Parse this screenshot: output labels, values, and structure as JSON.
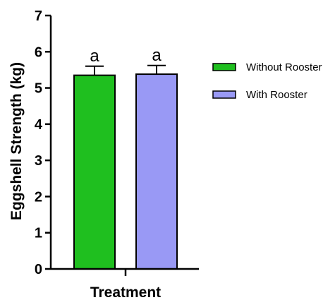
{
  "chart_data": {
    "type": "bar",
    "xlabel": "Treatment",
    "ylabel": "Eggshell Strength (kg)",
    "ylim": [
      0,
      7
    ],
    "yticks": [
      "0",
      "1",
      "2",
      "3",
      "4",
      "5",
      "6",
      "7"
    ],
    "grid": false,
    "legend_position": "right",
    "series": [
      {
        "name": "Without Rooster",
        "value": 5.35,
        "error": 0.25,
        "significance": "a",
        "color": "#1fbf1f"
      },
      {
        "name": "With Rooster",
        "value": 5.38,
        "error": 0.24,
        "significance": "a",
        "color": "#9999f5"
      }
    ]
  }
}
